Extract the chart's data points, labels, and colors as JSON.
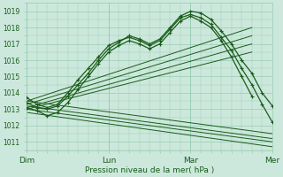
{
  "xlabel": "Pression niveau de la mer( hPa )",
  "bg_color": "#cce8dc",
  "grid_color": "#99ccb3",
  "line_color": "#1a5c1a",
  "ylim": [
    1010.5,
    1019.5
  ],
  "yticks": [
    1011,
    1012,
    1013,
    1014,
    1015,
    1016,
    1017,
    1018,
    1019
  ],
  "xlim": [
    0,
    72
  ],
  "xtick_positions": [
    0,
    24,
    48,
    72
  ],
  "xtick_labels": [
    "Dim",
    "Lun",
    "Mar",
    "Mer"
  ],
  "lines_with_markers": [
    {
      "x": [
        0,
        3,
        6,
        9,
        12,
        15,
        18,
        21,
        24,
        27,
        30,
        33,
        36,
        39,
        42,
        45,
        48,
        51,
        54,
        57,
        60,
        63,
        66,
        69,
        72
      ],
      "y": [
        1013.4,
        1013.1,
        1013.0,
        1013.2,
        1013.8,
        1014.5,
        1015.2,
        1016.0,
        1016.7,
        1017.1,
        1017.5,
        1017.3,
        1017.0,
        1017.3,
        1018.0,
        1018.7,
        1019.0,
        1018.9,
        1018.5,
        1017.8,
        1017.0,
        1016.0,
        1015.2,
        1014.0,
        1013.2
      ]
    },
    {
      "x": [
        0,
        3,
        6,
        9,
        12,
        15,
        18,
        21,
        24,
        27,
        30,
        33,
        36,
        39,
        42,
        45,
        48,
        51,
        54,
        57,
        60,
        63,
        66,
        69,
        72
      ],
      "y": [
        1013.7,
        1013.3,
        1013.1,
        1013.3,
        1014.0,
        1014.8,
        1015.5,
        1016.2,
        1016.9,
        1017.2,
        1017.4,
        1017.2,
        1016.9,
        1017.2,
        1017.9,
        1018.6,
        1018.8,
        1018.6,
        1018.2,
        1017.4,
        1016.6,
        1015.5,
        1014.5,
        1013.3,
        1012.2
      ]
    },
    {
      "x": [
        0,
        3,
        6,
        9,
        12,
        15,
        18,
        21,
        24,
        27,
        30,
        33,
        36,
        39,
        42,
        45,
        48,
        51,
        54,
        57,
        60,
        63,
        66
      ],
      "y": [
        1013.1,
        1012.9,
        1012.6,
        1012.8,
        1013.4,
        1014.2,
        1015.0,
        1015.8,
        1016.5,
        1016.9,
        1017.2,
        1017.0,
        1016.7,
        1017.0,
        1017.7,
        1018.4,
        1018.7,
        1018.4,
        1018.0,
        1017.2,
        1016.2,
        1015.0,
        1013.8
      ]
    }
  ],
  "lines_straight": [
    {
      "x": [
        0,
        66
      ],
      "y": [
        1013.5,
        1018.0
      ]
    },
    {
      "x": [
        0,
        66
      ],
      "y": [
        1013.3,
        1017.5
      ]
    },
    {
      "x": [
        0,
        66
      ],
      "y": [
        1013.1,
        1017.0
      ]
    },
    {
      "x": [
        0,
        66
      ],
      "y": [
        1013.0,
        1016.5
      ]
    },
    {
      "x": [
        0,
        72
      ],
      "y": [
        1013.5,
        1011.5
      ]
    },
    {
      "x": [
        0,
        72
      ],
      "y": [
        1013.2,
        1011.2
      ]
    },
    {
      "x": [
        0,
        72
      ],
      "y": [
        1013.0,
        1011.0
      ]
    },
    {
      "x": [
        0,
        72
      ],
      "y": [
        1012.8,
        1010.7
      ]
    }
  ]
}
